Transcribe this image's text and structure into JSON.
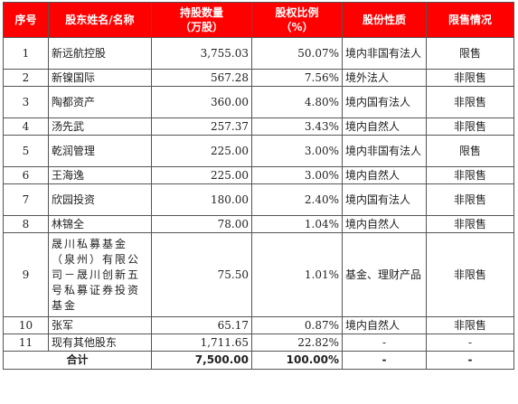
{
  "header": {
    "seq": "序号",
    "name": "股东姓名/名称",
    "shares_line1": "持股数量",
    "shares_line2": "（万股）",
    "ratio_line1": "股权比例",
    "ratio_line2": "（%）",
    "nature": "股份性质",
    "restriction": "限售情况"
  },
  "rows": [
    {
      "seq": "1",
      "name": "新远航控股",
      "shares": "3,755.03",
      "ratio": "50.07%",
      "nature": "境内非国有法人",
      "restriction": "限售"
    },
    {
      "seq": "2",
      "name": "新镍国际",
      "shares": "567.28",
      "ratio": "7.56%",
      "nature": "境外法人",
      "restriction": "非限售"
    },
    {
      "seq": "3",
      "name": "陶都资产",
      "shares": "360.00",
      "ratio": "4.80%",
      "nature": "境内国有法人",
      "restriction": "非限售"
    },
    {
      "seq": "4",
      "name": "汤先武",
      "shares": "257.37",
      "ratio": "3.43%",
      "nature": "境内自然人",
      "restriction": "非限售"
    },
    {
      "seq": "5",
      "name": "乾润管理",
      "shares": "225.00",
      "ratio": "3.00%",
      "nature": "境内非国有法人",
      "restriction": "限售"
    },
    {
      "seq": "6",
      "name": "王海逸",
      "shares": "225.00",
      "ratio": "3.00%",
      "nature": "境内自然人",
      "restriction": "非限售"
    },
    {
      "seq": "7",
      "name": "欣园投资",
      "shares": "180.00",
      "ratio": "2.40%",
      "nature": "境内国有法人",
      "restriction": "非限售"
    },
    {
      "seq": "8",
      "name": "林锦全",
      "shares": "78.00",
      "ratio": "1.04%",
      "nature": "境内自然人",
      "restriction": "非限售"
    },
    {
      "seq": "9",
      "name": "晟川私募基金（泉州）有限公司－晟川创新五号私募证券投资基金",
      "shares": "75.50",
      "ratio": "1.01%",
      "nature": "基金、理财产品",
      "restriction": "非限售"
    },
    {
      "seq": "10",
      "name": "张军",
      "shares": "65.17",
      "ratio": "0.87%",
      "nature": "境内自然人",
      "restriction": "非限售"
    },
    {
      "seq": "11",
      "name": "现有其他股东",
      "shares": "1,711.65",
      "ratio": "22.82%",
      "nature": "-",
      "restriction": "-"
    }
  ],
  "total": {
    "label": "合计",
    "shares": "7,500.00",
    "ratio": "100.00%",
    "nature": "-",
    "restriction": "-"
  }
}
